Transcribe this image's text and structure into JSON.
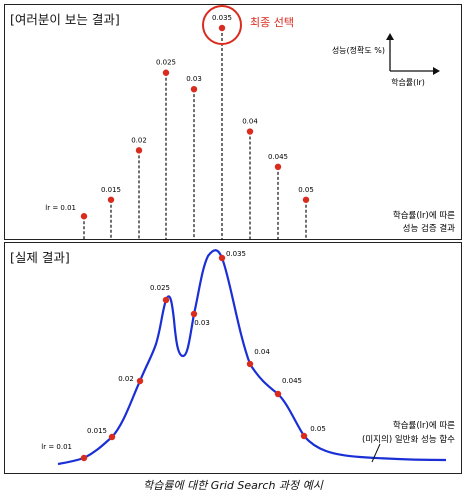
{
  "top_panel": {
    "title": "[여러분이 보는 결과]",
    "callout_label": "최종 선택",
    "axis_y_label": "성능(정확도 %)",
    "axis_x_label": "학습률(lr)",
    "note_line1": "학습률(lr)에 따른",
    "note_line2": "성능 검증 결과"
  },
  "bottom_panel": {
    "title": "[실제 결과]",
    "note_line1": "학습률(lr)에 따른",
    "note_line2": "(미지의) 일반화 성능 함수"
  },
  "caption": "학습률에 대한 Grid Search 과정 예시",
  "colors": {
    "point": "#d92b1e",
    "curve": "#1a2fd6",
    "callout": "#d92b1e"
  },
  "chart_data": [
    {
      "type": "scatter",
      "panel": "top",
      "x": [
        "lr = 0.01",
        "0.015",
        "0.02",
        "0.025",
        "0.03",
        "0.035",
        "0.04",
        "0.045",
        "0.05"
      ],
      "y": [
        0.5,
        1.2,
        3.3,
        6.6,
        5.9,
        8.5,
        4.1,
        2.6,
        1.2
      ],
      "selected": "0.035",
      "ylabel": "성능(정확도 %)",
      "xlabel": "학습률(lr)"
    },
    {
      "type": "line",
      "panel": "bottom",
      "x": [
        "lr = 0.01",
        "0.015",
        "0.02",
        "0.025",
        "0.03",
        "0.035",
        "0.04",
        "0.045",
        "0.05"
      ],
      "y": [
        0.5,
        1.1,
        3.3,
        6.6,
        5.9,
        8.5,
        4.1,
        3.2,
        1.1
      ]
    }
  ]
}
